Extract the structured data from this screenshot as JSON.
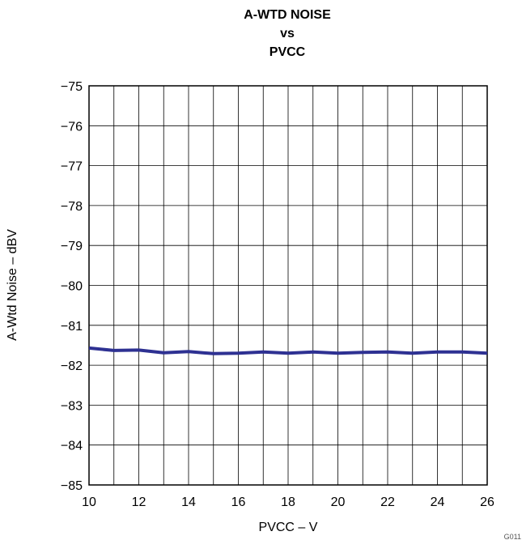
{
  "chart_data": {
    "type": "line",
    "title_lines": [
      "A-WTD NOISE",
      "vs",
      "PVCC"
    ],
    "xlabel": "PVCC – V",
    "ylabel": "A-Wtd Noise – dBV",
    "xlim": [
      10,
      26
    ],
    "ylim": [
      -85,
      -75
    ],
    "x_ticks": [
      10,
      12,
      14,
      16,
      18,
      20,
      22,
      24,
      26
    ],
    "x_tick_labels": [
      "10",
      "12",
      "14",
      "16",
      "18",
      "20",
      "22",
      "24",
      "26"
    ],
    "y_ticks": [
      -75,
      -76,
      -77,
      -78,
      -79,
      -80,
      -81,
      -82,
      -83,
      -84,
      -85
    ],
    "y_tick_labels": [
      "−75",
      "−76",
      "−77",
      "−78",
      "−79",
      "−80",
      "−81",
      "−82",
      "−83",
      "−84",
      "−85"
    ],
    "grid": true,
    "line_color": "#2e3192",
    "series": [
      {
        "x": [
          10,
          11,
          12,
          13,
          14,
          15,
          16,
          17,
          18,
          19,
          20,
          21,
          22,
          23,
          24,
          25,
          26
        ],
        "values": [
          -81.57,
          -81.63,
          -81.62,
          -81.69,
          -81.66,
          -81.71,
          -81.7,
          -81.67,
          -81.7,
          -81.67,
          -81.7,
          -81.68,
          -81.67,
          -81.7,
          -81.67,
          -81.67,
          -81.7
        ]
      }
    ]
  },
  "corner_mark": "G011"
}
